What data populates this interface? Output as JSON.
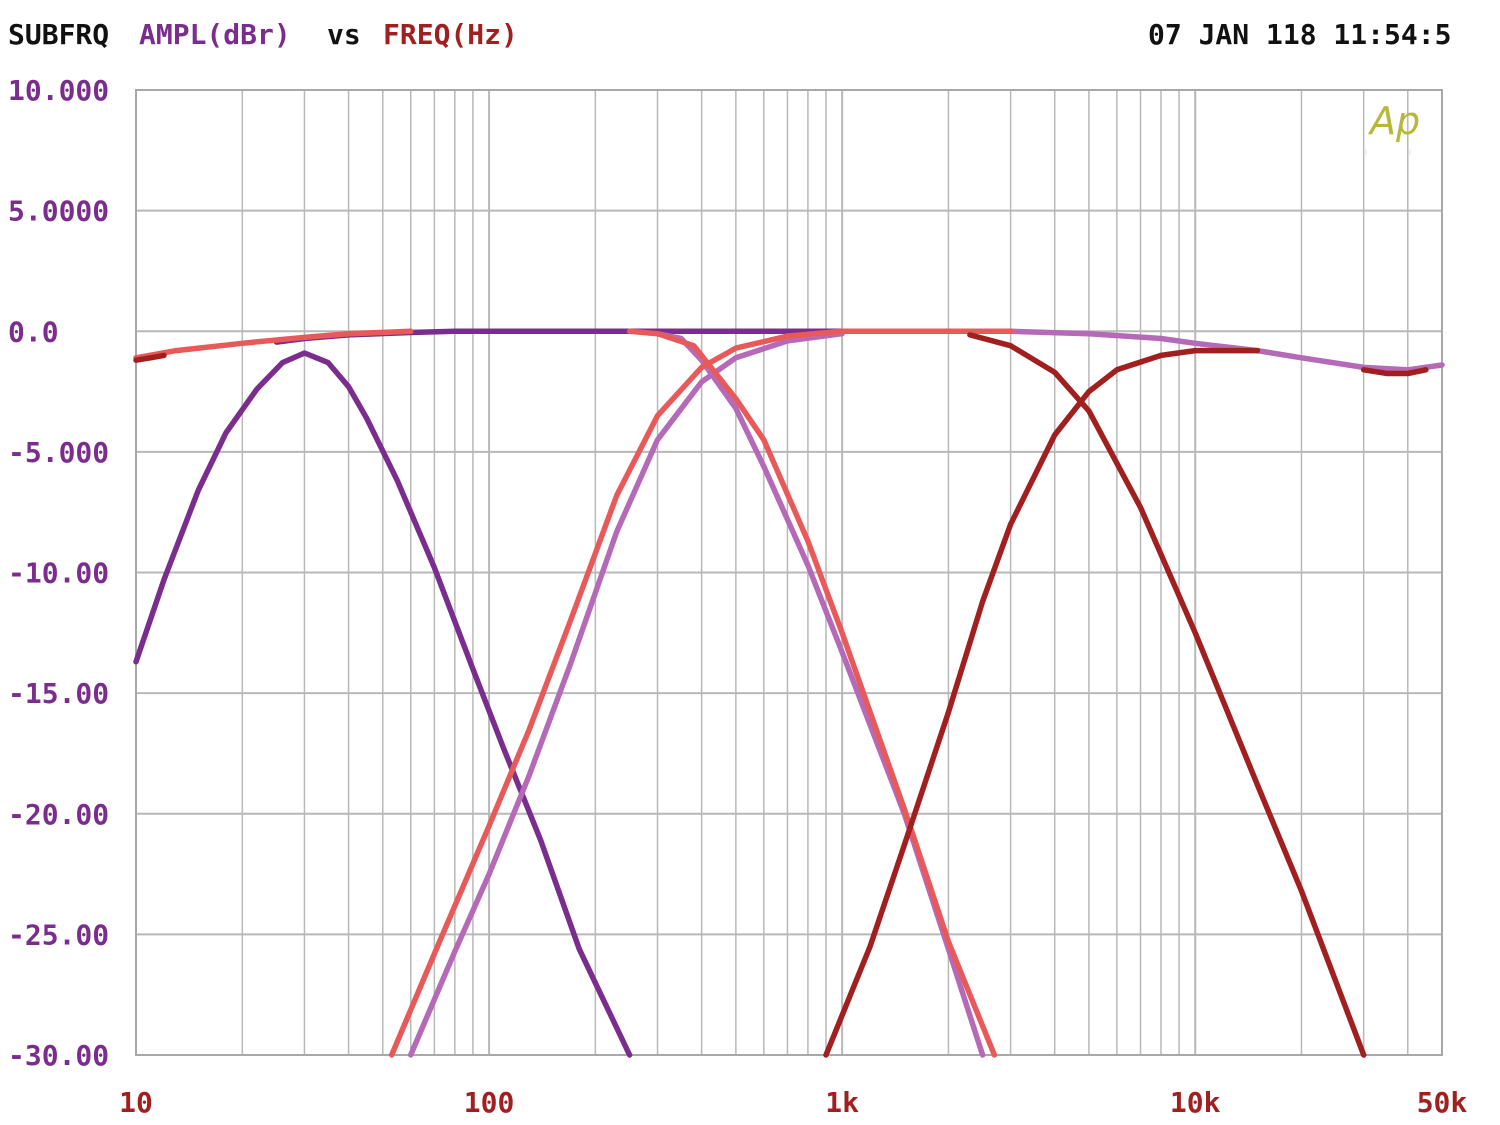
{
  "header": {
    "prefix": "SUBFRQ",
    "ylabel": "AMPL(dBr)",
    "vs": "vs",
    "xlabel": "FREQ(Hz)",
    "timestamp": "07 JAN 118 11:54:5"
  },
  "watermark": {
    "text": "Ap",
    "color": "#b5b83a"
  },
  "colors": {
    "ytick": "#7b2d8e",
    "xtick": "#a11f1f",
    "header_black": "#111111",
    "grid": "#b8b8b8"
  },
  "chart_data": {
    "type": "line",
    "xscale": "log",
    "xlim": [
      10,
      50000
    ],
    "ylim": [
      -30,
      10
    ],
    "grid": true,
    "ytick_labels": [
      "10.000",
      "5.0000",
      "0.0",
      "-5.000",
      "-10.00",
      "-15.00",
      "-20.00",
      "-25.00",
      "-30.00"
    ],
    "ytick_values": [
      10,
      5,
      0,
      -5,
      -10,
      -15,
      -20,
      -25,
      -30
    ],
    "xtick_labels": [
      "10",
      "100",
      "1k",
      "10k",
      "50k"
    ],
    "xtick_values": [
      10,
      100,
      1000,
      10000,
      50000
    ],
    "series": [
      {
        "color": "#7b2d8e",
        "points": [
          [
            10,
            -13.7
          ],
          [
            12,
            -10.3
          ],
          [
            15,
            -6.6
          ],
          [
            18,
            -4.2
          ],
          [
            22,
            -2.4
          ],
          [
            26,
            -1.3
          ],
          [
            30,
            -0.9
          ],
          [
            35,
            -1.3
          ],
          [
            40,
            -2.3
          ],
          [
            45,
            -3.6
          ],
          [
            55,
            -6.2
          ],
          [
            70,
            -9.8
          ],
          [
            90,
            -14.0
          ],
          [
            110,
            -17.3
          ],
          [
            140,
            -21.1
          ],
          [
            180,
            -25.6
          ],
          [
            250,
            -30.0
          ]
        ]
      },
      {
        "color": "#7b2d8e",
        "points": [
          [
            25,
            -0.45
          ],
          [
            30,
            -0.3
          ],
          [
            40,
            -0.15
          ],
          [
            60,
            -0.05
          ],
          [
            80,
            0.0
          ],
          [
            200,
            0.0
          ],
          [
            400,
            0.0
          ],
          [
            600,
            0.0
          ],
          [
            1000,
            0.0
          ]
        ]
      },
      {
        "color": "#b56ab8",
        "points": [
          [
            60,
            -30.0
          ],
          [
            80,
            -25.7
          ],
          [
            100,
            -22.5
          ],
          [
            130,
            -18.4
          ],
          [
            170,
            -13.8
          ],
          [
            230,
            -8.3
          ],
          [
            300,
            -4.5
          ],
          [
            400,
            -2.1
          ],
          [
            500,
            -1.1
          ],
          [
            700,
            -0.4
          ],
          [
            1000,
            -0.1
          ]
        ]
      },
      {
        "color": "#b56ab8",
        "points": [
          [
            300,
            -0.1
          ],
          [
            350,
            -0.3
          ],
          [
            400,
            -1.2
          ],
          [
            500,
            -3.2
          ],
          [
            600,
            -5.6
          ],
          [
            800,
            -9.7
          ],
          [
            1000,
            -13.3
          ],
          [
            1500,
            -20.0
          ],
          [
            2000,
            -25.6
          ],
          [
            2500,
            -30.0
          ]
        ]
      },
      {
        "color": "#b56ab8",
        "points": [
          [
            2000,
            0.0
          ],
          [
            3000,
            0.0
          ],
          [
            5000,
            -0.1
          ],
          [
            8000,
            -0.3
          ],
          [
            10000,
            -0.5
          ],
          [
            15000,
            -0.8
          ],
          [
            20000,
            -1.1
          ],
          [
            30000,
            -1.5
          ],
          [
            40000,
            -1.6
          ],
          [
            50000,
            -1.4
          ]
        ]
      },
      {
        "color": "#e85a5a",
        "points": [
          [
            53,
            -30.0
          ],
          [
            70,
            -25.8
          ],
          [
            100,
            -20.5
          ],
          [
            130,
            -16.5
          ],
          [
            170,
            -12.0
          ],
          [
            230,
            -6.8
          ],
          [
            300,
            -3.5
          ],
          [
            400,
            -1.5
          ],
          [
            500,
            -0.7
          ],
          [
            700,
            -0.2
          ],
          [
            1000,
            0.0
          ],
          [
            2000,
            0.0
          ],
          [
            3000,
            0.0
          ]
        ]
      },
      {
        "color": "#e85a5a",
        "points": [
          [
            250,
            0.0
          ],
          [
            300,
            -0.1
          ],
          [
            380,
            -0.6
          ],
          [
            500,
            -2.8
          ],
          [
            600,
            -4.5
          ],
          [
            800,
            -8.7
          ],
          [
            1000,
            -12.5
          ],
          [
            1500,
            -19.8
          ],
          [
            2000,
            -25.3
          ],
          [
            2700,
            -30.0
          ]
        ]
      },
      {
        "color": "#e85a5a",
        "points": [
          [
            10,
            -1.1
          ],
          [
            13,
            -0.8
          ],
          [
            20,
            -0.5
          ],
          [
            30,
            -0.25
          ],
          [
            40,
            -0.1
          ],
          [
            60,
            0.0
          ]
        ]
      },
      {
        "color": "#a11f1f",
        "points": [
          [
            900,
            -30.0
          ],
          [
            1200,
            -25.5
          ],
          [
            1500,
            -21.3
          ],
          [
            2000,
            -15.8
          ],
          [
            2500,
            -11.2
          ],
          [
            3000,
            -8.0
          ],
          [
            4000,
            -4.3
          ],
          [
            5000,
            -2.5
          ],
          [
            6000,
            -1.6
          ],
          [
            8000,
            -1.0
          ],
          [
            10000,
            -0.8
          ],
          [
            15000,
            -0.8
          ]
        ]
      },
      {
        "color": "#a11f1f",
        "points": [
          [
            2300,
            -0.15
          ],
          [
            3000,
            -0.6
          ],
          [
            4000,
            -1.7
          ],
          [
            5000,
            -3.3
          ],
          [
            7000,
            -7.3
          ],
          [
            10000,
            -12.5
          ],
          [
            15000,
            -18.8
          ],
          [
            20000,
            -23.2
          ],
          [
            30000,
            -30.0
          ]
        ]
      },
      {
        "color": "#a11f1f",
        "points": [
          [
            10,
            -1.2
          ],
          [
            11,
            -1.1
          ],
          [
            12,
            -1.0
          ]
        ]
      },
      {
        "color": "#a11f1f",
        "points": [
          [
            30000,
            -1.6
          ],
          [
            35000,
            -1.75
          ],
          [
            40000,
            -1.75
          ],
          [
            45000,
            -1.6
          ]
        ]
      }
    ]
  }
}
